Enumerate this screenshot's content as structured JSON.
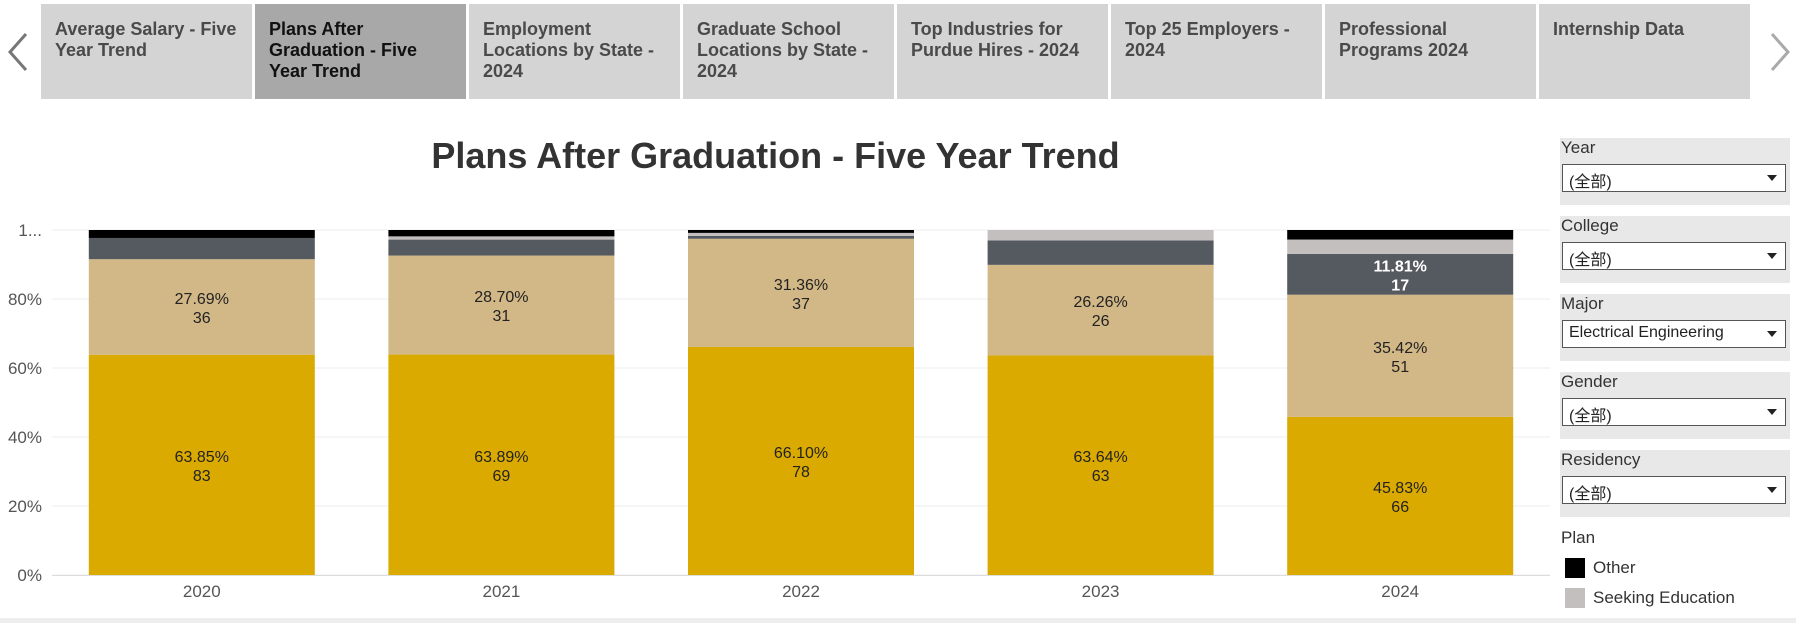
{
  "tabs": [
    {
      "label": "Average Salary - Five Year Trend",
      "active": false
    },
    {
      "label": "Plans After Graduation - Five Year  Trend",
      "active": true
    },
    {
      "label": "Employment Locations by State - 2024",
      "active": false
    },
    {
      "label": "Graduate School Locations by State - 2024",
      "active": false
    },
    {
      "label": "Top Industries for Purdue Hires - 2024",
      "active": false
    },
    {
      "label": "Top 25 Employers - 2024",
      "active": false
    },
    {
      "label": "Professional Programs 2024",
      "active": false
    },
    {
      "label": "Internship Data",
      "active": false
    }
  ],
  "nav": {
    "prev_icon": "chevron-left-icon",
    "next_icon": "chevron-right-icon"
  },
  "filters": [
    {
      "label": "Year",
      "value": "(全部)"
    },
    {
      "label": "College",
      "value": "(全部)"
    },
    {
      "label": "Major",
      "value": "Electrical Engineering"
    },
    {
      "label": "Gender",
      "value": "(全部)"
    },
    {
      "label": "Residency",
      "value": "(全部)"
    }
  ],
  "legend": {
    "title": "Plan",
    "items": [
      {
        "label": "Other",
        "color": "#000000"
      },
      {
        "label": "Seeking Education",
        "color": "#c4bfbf"
      }
    ]
  },
  "chart_data": {
    "type": "bar",
    "stacked": true,
    "title": "Plans After Graduation - Five Year Trend",
    "xlabel": "",
    "ylabel": "",
    "ylim": [
      0,
      1.0
    ],
    "yticks": [
      "0%",
      "20%",
      "40%",
      "60%",
      "80%",
      "1..."
    ],
    "categories": [
      "2020",
      "2021",
      "2022",
      "2023",
      "2024"
    ],
    "series": [
      {
        "color": "#dbaa00",
        "values": [
          0.6385,
          0.6389,
          0.661,
          0.6364,
          0.4583
        ],
        "labels": [
          [
            "63.85%",
            "83"
          ],
          [
            "63.89%",
            "69"
          ],
          [
            "66.10%",
            "78"
          ],
          [
            "63.64%",
            "63"
          ],
          [
            "45.83%",
            "66"
          ]
        ]
      },
      {
        "color": "#d2b787",
        "values": [
          0.2769,
          0.287,
          0.3136,
          0.2626,
          0.3542
        ],
        "labels": [
          [
            "27.69%",
            "36"
          ],
          [
            "28.70%",
            "31"
          ],
          [
            "31.36%",
            "37"
          ],
          [
            "26.26%",
            "26"
          ],
          [
            "35.42%",
            "51"
          ]
        ]
      },
      {
        "color": "#555960",
        "values": [
          0.0615,
          0.0463,
          0.0085,
          0.0707,
          0.1181
        ],
        "labels": [
          [],
          [],
          [],
          [],
          [
            "11.81%",
            "17"
          ]
        ]
      },
      {
        "name": "Seeking Education",
        "color": "#c4bfbf",
        "values": [
          0.0,
          0.0093,
          0.0085,
          0.0303,
          0.0417
        ],
        "labels": [
          [],
          [],
          [],
          [],
          []
        ]
      },
      {
        "name": "Other",
        "color": "#000000",
        "values": [
          0.0231,
          0.0185,
          0.0084,
          0.0,
          0.0277
        ],
        "labels": [
          [],
          [],
          [],
          [],
          []
        ]
      }
    ],
    "grid": true
  }
}
